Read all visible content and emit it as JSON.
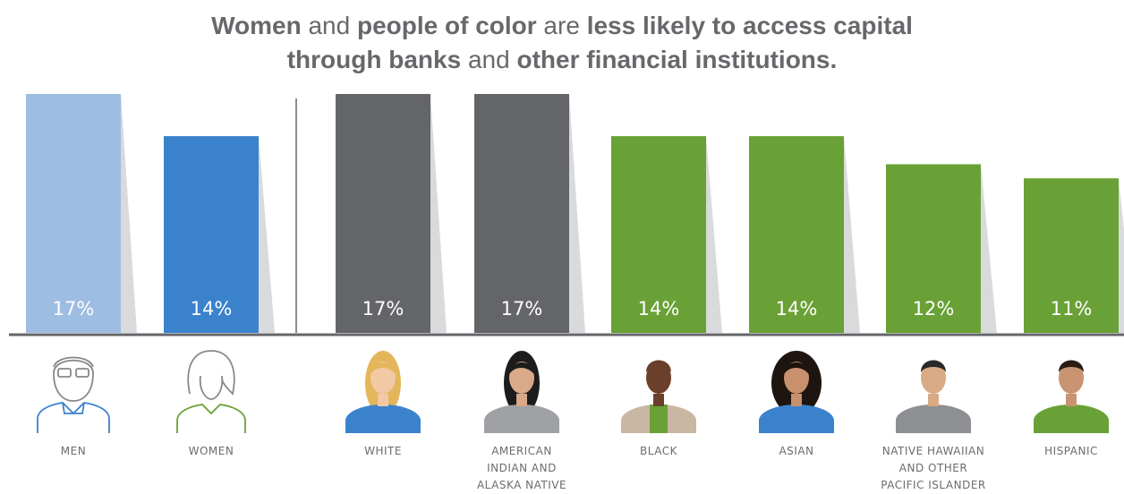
{
  "title": {
    "line1": [
      {
        "text": "Women",
        "bold": true
      },
      {
        "text": " and ",
        "bold": false
      },
      {
        "text": "people of color",
        "bold": true
      },
      {
        "text": " are ",
        "bold": false
      },
      {
        "text": "less likely to access capital",
        "bold": true
      }
    ],
    "line2": [
      {
        "text": "through banks",
        "bold": true
      },
      {
        "text": " and ",
        "bold": false
      },
      {
        "text": "other financial institutions.",
        "bold": true
      }
    ]
  },
  "chart_data": {
    "type": "bar",
    "title": "Women and people of color are less likely to access capital through banks and other financial institutions.",
    "categories": [
      "MEN",
      "WOMEN",
      "WHITE",
      "AMERICAN INDIAN AND ALASKA NATIVE",
      "BLACK",
      "ASIAN",
      "NATIVE HAWAIIAN AND OTHER PACIFIC ISLANDER",
      "HISPANIC"
    ],
    "category_lines": [
      [
        "MEN"
      ],
      [
        "WOMEN"
      ],
      [
        "WHITE"
      ],
      [
        "AMERICAN",
        "INDIAN AND",
        "ALASKA NATIVE"
      ],
      [
        "BLACK"
      ],
      [
        "ASIAN"
      ],
      [
        "NATIVE HAWAIIAN",
        "AND OTHER",
        "PACIFIC ISLANDER"
      ],
      [
        "HISPANIC"
      ]
    ],
    "values": [
      17,
      14,
      17,
      17,
      14,
      14,
      12,
      11
    ],
    "value_labels": [
      "17%",
      "14%",
      "17%",
      "17%",
      "14%",
      "14%",
      "12%",
      "11%"
    ],
    "groups": [
      {
        "name": "gender",
        "categories": [
          "MEN",
          "WOMEN"
        ]
      },
      {
        "name": "race",
        "categories": [
          "WHITE",
          "AMERICAN INDIAN AND ALASKA NATIVE",
          "BLACK",
          "ASIAN",
          "NATIVE HAWAIIAN AND OTHER PACIFIC ISLANDER",
          "HISPANIC"
        ]
      }
    ],
    "colors": [
      "#9dbde3",
      "#3b82cd",
      "#646568",
      "#646568",
      "#6aa136",
      "#6aa136",
      "#6aa136",
      "#6aa136"
    ],
    "icons": [
      "man-outline-icon",
      "woman-outline-icon",
      "white-woman-portrait-icon",
      "american-indian-woman-portrait-icon",
      "black-man-portrait-icon",
      "asian-woman-portrait-icon",
      "pacific-islander-man-portrait-icon",
      "hispanic-man-portrait-icon"
    ],
    "ylim": [
      0,
      17
    ],
    "grid": false,
    "legend": "none"
  }
}
